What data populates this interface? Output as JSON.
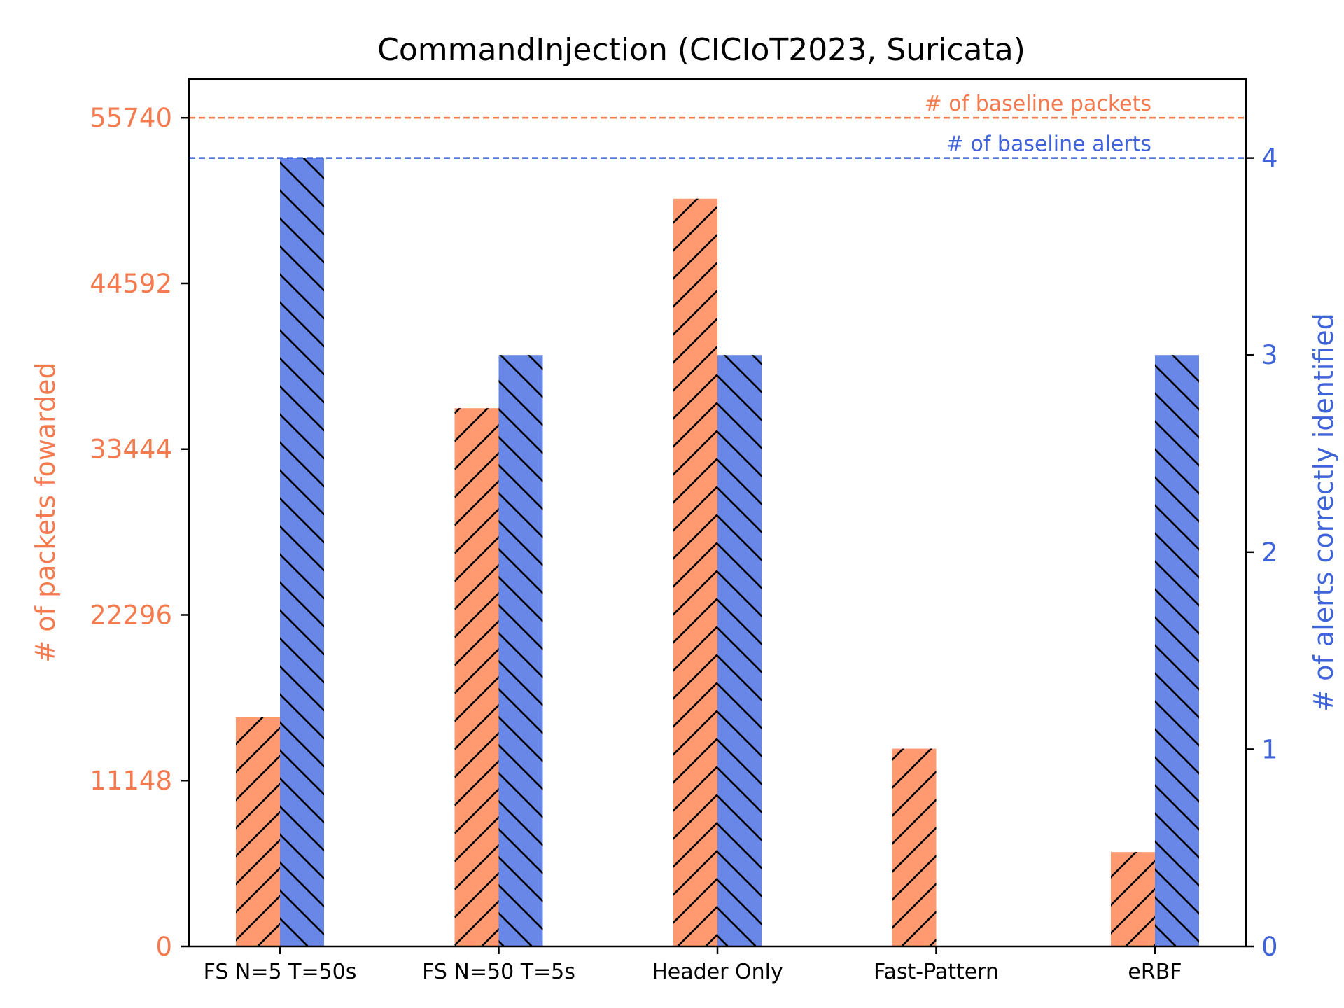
{
  "chart_data": {
    "type": "bar",
    "title": "CommandInjection (CICIoT2023, Suricata)",
    "categories": [
      "FS N=5 T=50s",
      "FS N=50 T=5s",
      "Header Only",
      "Fast-Pattern",
      "eRBF"
    ],
    "y_left": {
      "label": "# of packets fowarded",
      "ticks": [
        "0",
        "11148",
        "22296",
        "33444",
        "44592",
        "55740"
      ],
      "ylim": [
        0,
        58340
      ],
      "color": "#f47b4f"
    },
    "y_right": {
      "label": "# of alerts correctly identified",
      "ticks": [
        "0",
        "1",
        "2",
        "3",
        "4"
      ],
      "ylim": [
        0,
        4.4
      ],
      "color": "#3f63d8"
    },
    "series": [
      {
        "axis": "left",
        "values": [
          15400,
          36200,
          50300,
          13300,
          6350
        ],
        "color": "#ff9970",
        "hatch": "forward-diagonal"
      },
      {
        "axis": "right",
        "values": [
          4,
          3,
          3,
          0,
          3
        ],
        "color": "#6887e6",
        "hatch": "back-diagonal"
      }
    ],
    "baselines": [
      {
        "label": "# of baseline packets",
        "axis": "left",
        "value": 55740,
        "color": "#f47b4f"
      },
      {
        "label": "# of baseline alerts",
        "axis": "right",
        "value": 4,
        "color": "#3f63d8"
      }
    ],
    "grid": false,
    "legend": "none"
  }
}
